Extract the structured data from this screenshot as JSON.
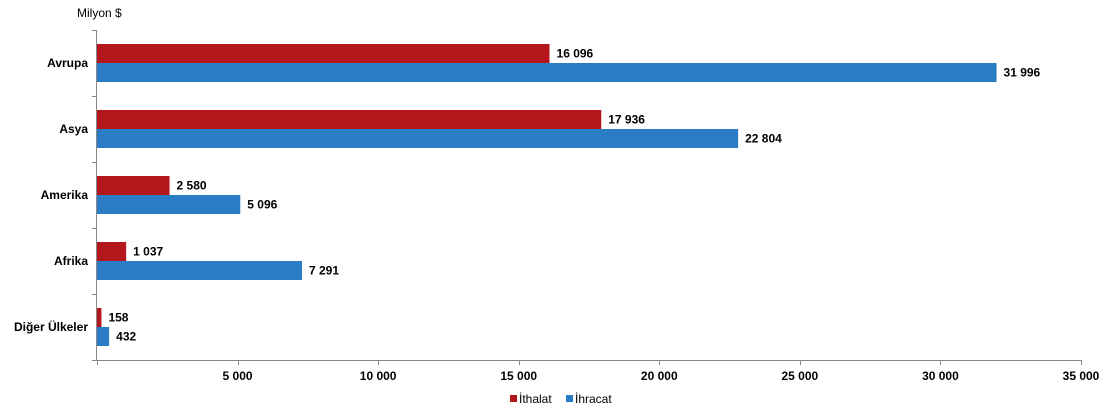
{
  "chart_data": {
    "type": "bar",
    "orientation": "horizontal",
    "unit_label": "Milyon $",
    "categories": [
      "Avrupa",
      "Asya",
      "Amerika",
      "Afrika",
      "Diğer Ülkeler"
    ],
    "series": [
      {
        "name": "İthalat",
        "color": "#b3161b",
        "values": [
          16096,
          17936,
          2580,
          1037,
          158
        ],
        "labels": [
          "16 096",
          "17 936",
          "2 580",
          "1 037",
          "158"
        ]
      },
      {
        "name": "İhracat",
        "color": "#2a7dc4",
        "values": [
          31996,
          22804,
          5096,
          7291,
          432
        ],
        "labels": [
          "31 996",
          "22 804",
          "5 096",
          "7 291",
          "432"
        ]
      }
    ],
    "xlim": [
      0,
      35000
    ],
    "xticks": [
      5000,
      10000,
      15000,
      20000,
      25000,
      30000,
      35000
    ],
    "xtick_labels": [
      "5 000",
      "10 000",
      "15 000",
      "20 000",
      "25 000",
      "30 000",
      "35 000"
    ],
    "grid": false,
    "legend_position": "bottom"
  }
}
